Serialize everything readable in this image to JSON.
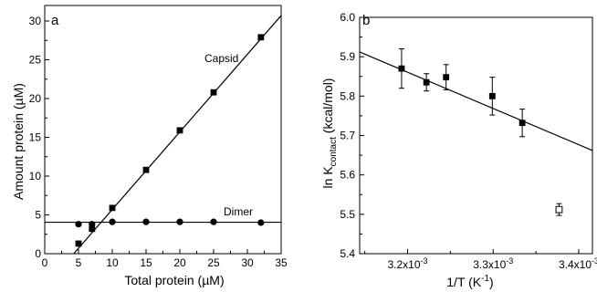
{
  "chart_data": [
    {
      "panel_label": "a",
      "type": "scatter",
      "xlabel": "Total protein (µM)",
      "ylabel": "Amount protein (µM)",
      "xlim": [
        0,
        35
      ],
      "ylim": [
        0,
        32
      ],
      "xticks": [
        "0",
        "5",
        "10",
        "15",
        "20",
        "25",
        "30",
        "35"
      ],
      "yticks": [
        "0",
        "5",
        "10",
        "15",
        "20",
        "25",
        "30"
      ],
      "grid": false,
      "series": [
        {
          "name": "Capsid",
          "marker": "filled-square",
          "x": [
            5,
            7,
            10,
            15,
            20,
            25,
            32
          ],
          "y": [
            1.3,
            3.2,
            5.9,
            10.8,
            15.9,
            20.8,
            27.9
          ],
          "fit_line": {
            "x": [
              4.3,
              35
            ],
            "y": [
              0,
              30.7
            ]
          }
        },
        {
          "name": "Dimer",
          "marker": "filled-circle",
          "x": [
            5,
            7,
            10,
            15,
            20,
            25,
            32
          ],
          "y": [
            3.8,
            3.8,
            4.1,
            4.1,
            4.1,
            4.1,
            4.0
          ],
          "fit_line": {
            "x": [
              0,
              35
            ],
            "y": [
              4.05,
              4.05
            ]
          }
        }
      ]
    },
    {
      "panel_label": "b",
      "type": "scatter",
      "xlabel": "1/T (K",
      "xlabel_sup": "-1",
      "xlabel_end": ")",
      "ylabel": "ln K",
      "ylabel_sub": "contact",
      "ylabel_end": " (kcal/mol)",
      "xlim": [
        0.003144,
        0.003416
      ],
      "ylim": [
        5.4,
        6.0
      ],
      "xticks": [
        {
          "value": 0.0032,
          "mantissa": "3.2x10",
          "exp": "-3"
        },
        {
          "value": 0.0033,
          "mantissa": "3.3x10",
          "exp": "-3"
        },
        {
          "value": 0.0034,
          "mantissa": "3.4x10",
          "exp": "-3"
        }
      ],
      "yticks": [
        "5.4",
        "5.5",
        "5.6",
        "5.7",
        "5.8",
        "5.9",
        "6.0"
      ],
      "grid": false,
      "series": [
        {
          "marker": "filled-square",
          "x": [
            0.003193,
            0.003222,
            0.003245,
            0.003299,
            0.003334
          ],
          "y": [
            5.87,
            5.835,
            5.848,
            5.8,
            5.732
          ],
          "err": [
            0.05,
            0.022,
            0.032,
            0.048,
            0.035
          ]
        },
        {
          "marker": "open-square",
          "x": [
            0.003377
          ],
          "y": [
            5.512
          ],
          "err": [
            0.015
          ]
        }
      ],
      "fit_line": {
        "x": [
          0.003144,
          0.003416
        ],
        "y": [
          5.912,
          5.662
        ]
      }
    }
  ]
}
